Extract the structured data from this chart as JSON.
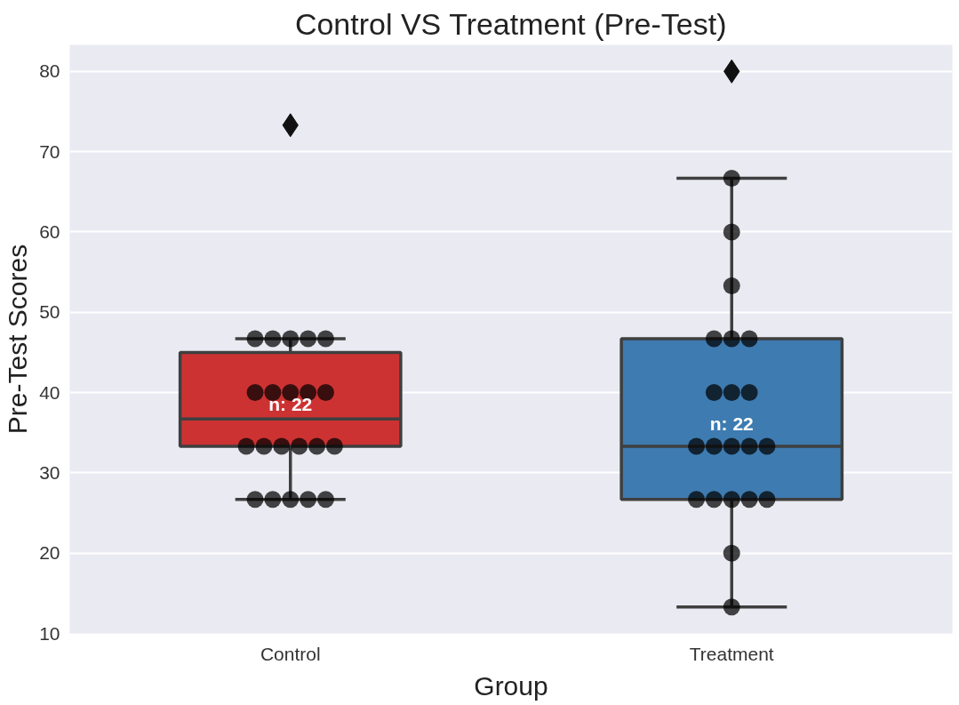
{
  "chart_data": {
    "type": "box",
    "title": "Control VS Treatment (Pre-Test)",
    "xlabel": "Group",
    "ylabel": "Pre-Test Scores",
    "categories": [
      "Control",
      "Treatment"
    ],
    "ylim": [
      10,
      83.3
    ],
    "yticks": [
      10,
      20,
      30,
      40,
      50,
      60,
      70,
      80
    ],
    "grid": "y",
    "series": [
      {
        "colors": [
          "#cd3232",
          "#3e7bb0"
        ],
        "boxes": [
          {
            "low": 26.7,
            "q1": 33.3,
            "median": 36.7,
            "q3": 45,
            "high": 46.7,
            "outliers": [
              73.3
            ]
          },
          {
            "low": 13.3,
            "q1": 26.7,
            "median": 33.3,
            "q3": 46.7,
            "high": 66.7,
            "outliers": [
              80
            ]
          }
        ]
      },
      {
        "type": "scatter",
        "marker": "circle",
        "color": "#000000",
        "x": [
          "Control",
          "Control",
          "Control",
          "Control",
          "Control",
          "Control",
          "Control",
          "Control",
          "Control",
          "Control",
          "Control",
          "Control",
          "Control",
          "Control",
          "Control",
          "Control",
          "Control",
          "Control",
          "Control",
          "Control",
          "Control",
          "Treatment",
          "Treatment",
          "Treatment",
          "Treatment",
          "Treatment",
          "Treatment",
          "Treatment",
          "Treatment",
          "Treatment",
          "Treatment",
          "Treatment",
          "Treatment",
          "Treatment",
          "Treatment",
          "Treatment",
          "Treatment",
          "Treatment",
          "Treatment",
          "Treatment",
          "Treatment",
          "Treatment"
        ],
        "values": [
          46.7,
          46.7,
          46.7,
          46.7,
          46.7,
          40,
          40,
          40,
          40,
          40,
          33.3,
          33.3,
          33.3,
          33.3,
          33.3,
          33.3,
          26.7,
          26.7,
          26.7,
          26.7,
          26.7,
          66.7,
          60,
          53.3,
          46.7,
          46.7,
          46.7,
          40,
          40,
          40,
          33.3,
          33.3,
          33.3,
          33.3,
          33.3,
          26.7,
          26.7,
          26.7,
          26.7,
          26.7,
          20,
          13.3
        ]
      }
    ],
    "annotations": [
      "n: 22",
      "n: 22"
    ]
  }
}
